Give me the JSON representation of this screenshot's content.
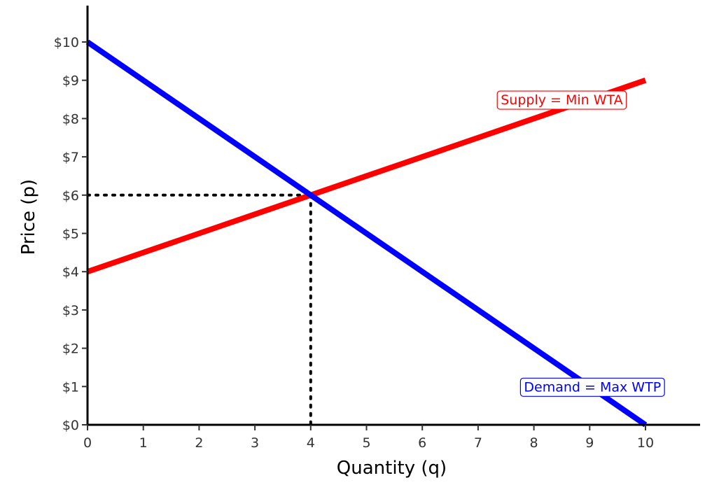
{
  "chart_data": {
    "type": "line",
    "title": "",
    "xlabel": "Quantity (q)",
    "ylabel": "Price (p)",
    "xlim": [
      0,
      11
    ],
    "ylim": [
      0,
      11
    ],
    "x_ticks": [
      "0",
      "1",
      "2",
      "3",
      "4",
      "5",
      "6",
      "7",
      "8",
      "9",
      "10"
    ],
    "y_ticks": [
      "$0",
      "$1",
      "$2",
      "$3",
      "$4",
      "$5",
      "$6",
      "$7",
      "$8",
      "$9",
      "$10"
    ],
    "grid": false,
    "series": [
      {
        "name": "Supply = Min WTA",
        "color": "#ff0000",
        "x": [
          0,
          10
        ],
        "y": [
          4,
          9
        ]
      },
      {
        "name": "Demand = Max WTP",
        "color": "#0000ff",
        "x": [
          0,
          10
        ],
        "y": [
          10,
          0
        ]
      }
    ],
    "equilibrium": {
      "x": 4,
      "y": 6
    },
    "annotations": [
      {
        "text": "Supply = Min WTA",
        "x": 8.5,
        "y": 8.5,
        "color": "#ff0000"
      },
      {
        "text": "Demand = Max WTP",
        "x": 9.05,
        "y": 1,
        "color": "#0000ff"
      }
    ]
  }
}
